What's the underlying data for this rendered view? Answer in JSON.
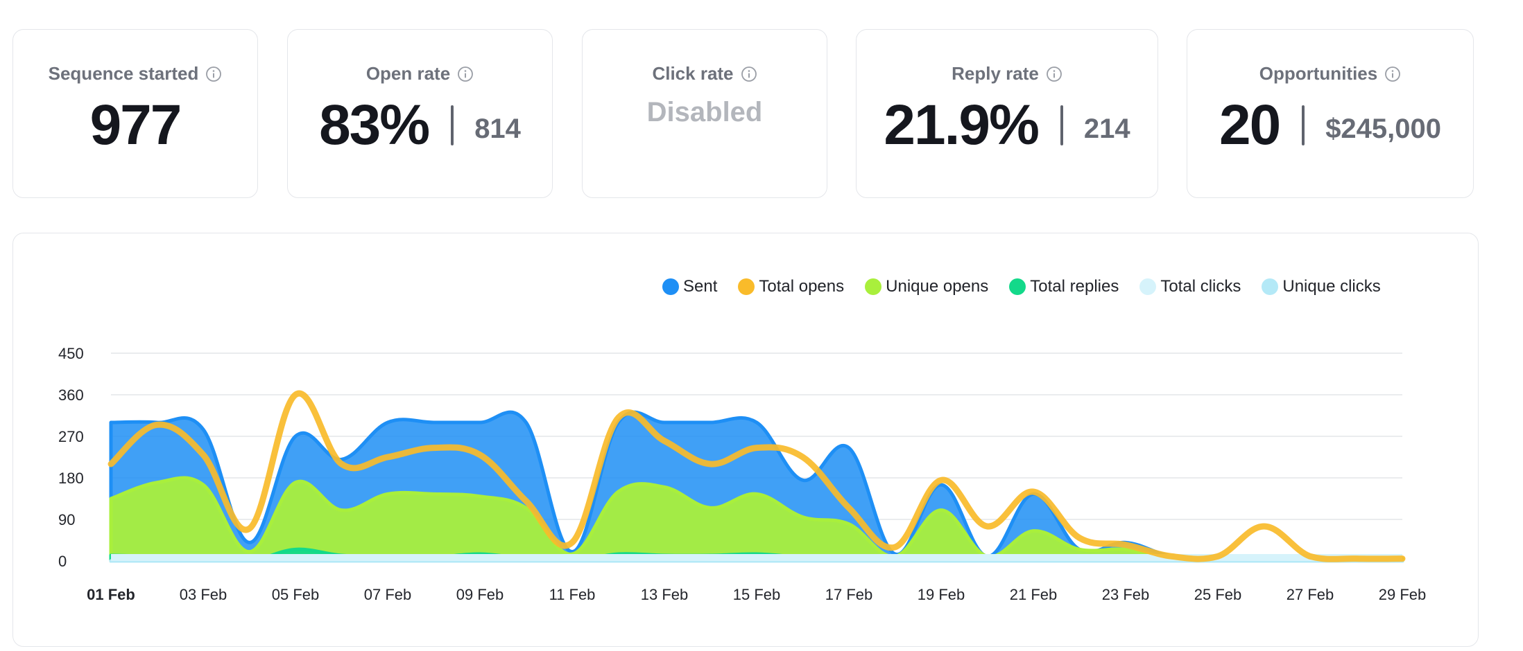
{
  "cards": {
    "sequence_started": {
      "title": "Sequence started",
      "value": "977"
    },
    "open_rate": {
      "title": "Open rate",
      "value": "83%",
      "count": "814"
    },
    "click_rate": {
      "title": "Click rate",
      "value": "Disabled"
    },
    "reply_rate": {
      "title": "Reply rate",
      "value": "21.9%",
      "count": "214"
    },
    "opportunities": {
      "title": "Opportunities",
      "value": "20",
      "amount": "$245,000"
    }
  },
  "icons": {
    "info": "info-icon"
  },
  "chart_data": {
    "type": "area",
    "title": "",
    "xlabel": "",
    "ylabel": "",
    "ylim": [
      0,
      450
    ],
    "yticks": [
      "0",
      "90",
      "180",
      "270",
      "360",
      "450"
    ],
    "grid": true,
    "legend_position": "top-right",
    "x": [
      "01 Feb",
      "02 Feb",
      "03 Feb",
      "04 Feb",
      "05 Feb",
      "06 Feb",
      "07 Feb",
      "08 Feb",
      "09 Feb",
      "10 Feb",
      "11 Feb",
      "12 Feb",
      "13 Feb",
      "14 Feb",
      "15 Feb",
      "16 Feb",
      "17 Feb",
      "18 Feb",
      "19 Feb",
      "20 Feb",
      "21 Feb",
      "22 Feb",
      "23 Feb",
      "24 Feb",
      "25 Feb",
      "26 Feb",
      "27 Feb",
      "28 Feb",
      "29 Feb"
    ],
    "xtick_labels": [
      "01 Feb",
      "03 Feb",
      "05 Feb",
      "07 Feb",
      "09 Feb",
      "11 Feb",
      "13 Feb",
      "15 Feb",
      "17 Feb",
      "19 Feb",
      "21 Feb",
      "23 Feb",
      "25 Feb",
      "27 Feb",
      "29 Feb"
    ],
    "series": [
      {
        "name": "Sent",
        "color": "#1e8ff5",
        "kind": "area",
        "values": [
          300,
          300,
          285,
          40,
          270,
          220,
          300,
          300,
          300,
          300,
          20,
          300,
          300,
          300,
          300,
          175,
          245,
          15,
          165,
          10,
          145,
          25,
          40,
          10,
          10,
          10,
          8,
          5,
          5
        ]
      },
      {
        "name": "Total opens",
        "color": "#f9bb2a",
        "kind": "line",
        "values": [
          210,
          295,
          230,
          70,
          360,
          210,
          225,
          245,
          230,
          130,
          40,
          310,
          260,
          210,
          245,
          225,
          115,
          30,
          175,
          75,
          150,
          50,
          35,
          10,
          10,
          75,
          10,
          5,
          5
        ]
      },
      {
        "name": "Unique opens",
        "color": "#a9ef3c",
        "kind": "area",
        "values": [
          135,
          170,
          165,
          20,
          170,
          110,
          145,
          145,
          140,
          115,
          15,
          150,
          160,
          115,
          145,
          95,
          80,
          10,
          110,
          10,
          65,
          25,
          25,
          5,
          5,
          10,
          5,
          5,
          5
        ]
      },
      {
        "name": "Total replies",
        "color": "#13d98a",
        "kind": "area",
        "values": [
          12,
          10,
          8,
          0,
          25,
          12,
          10,
          8,
          15,
          5,
          0,
          15,
          12,
          12,
          15,
          8,
          5,
          0,
          5,
          0,
          5,
          2,
          2,
          0,
          0,
          0,
          0,
          0,
          0
        ]
      },
      {
        "name": "Total clicks",
        "color": "#d6f3fb",
        "kind": "area",
        "values": [
          0,
          0,
          0,
          0,
          0,
          0,
          0,
          0,
          0,
          0,
          0,
          0,
          0,
          0,
          0,
          0,
          0,
          0,
          0,
          0,
          0,
          0,
          0,
          0,
          0,
          0,
          0,
          0,
          0
        ]
      },
      {
        "name": "Unique clicks",
        "color": "#b4e9f7",
        "kind": "area",
        "values": [
          0,
          0,
          0,
          0,
          0,
          0,
          0,
          0,
          0,
          0,
          0,
          0,
          0,
          0,
          0,
          0,
          0,
          0,
          0,
          0,
          0,
          0,
          0,
          0,
          0,
          0,
          0,
          0,
          0
        ]
      }
    ]
  }
}
